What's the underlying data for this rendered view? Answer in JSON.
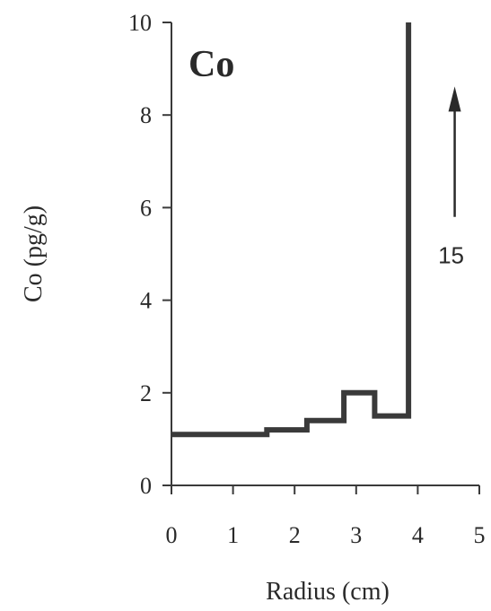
{
  "chart_data": {
    "type": "line",
    "title": "Co",
    "xlabel": "Radius (cm)",
    "ylabel": "Co (pg/g)",
    "xlim": [
      0,
      5
    ],
    "ylim": [
      0,
      10
    ],
    "xticks": [
      "0",
      "1",
      "2",
      "3",
      "4",
      "5"
    ],
    "yticks": [
      "0",
      "2",
      "4",
      "6",
      "8",
      "10"
    ],
    "grid": false,
    "legend": "none",
    "line_color": "#3a3a3a",
    "series": [
      {
        "step": true,
        "x": [
          0,
          1.55,
          1.55,
          2.2,
          2.2,
          2.8,
          2.8,
          3.3,
          3.3,
          3.85,
          3.85
        ],
        "y": [
          1.1,
          1.1,
          1.2,
          1.2,
          1.4,
          1.4,
          2.0,
          2.0,
          1.5,
          1.5,
          10.0
        ]
      }
    ],
    "annotations": [
      {
        "text": "15",
        "note": "upward arrow indicates peak value off scale",
        "x": 4.6,
        "y_from": 5.8,
        "y_to": 8.5
      }
    ]
  }
}
